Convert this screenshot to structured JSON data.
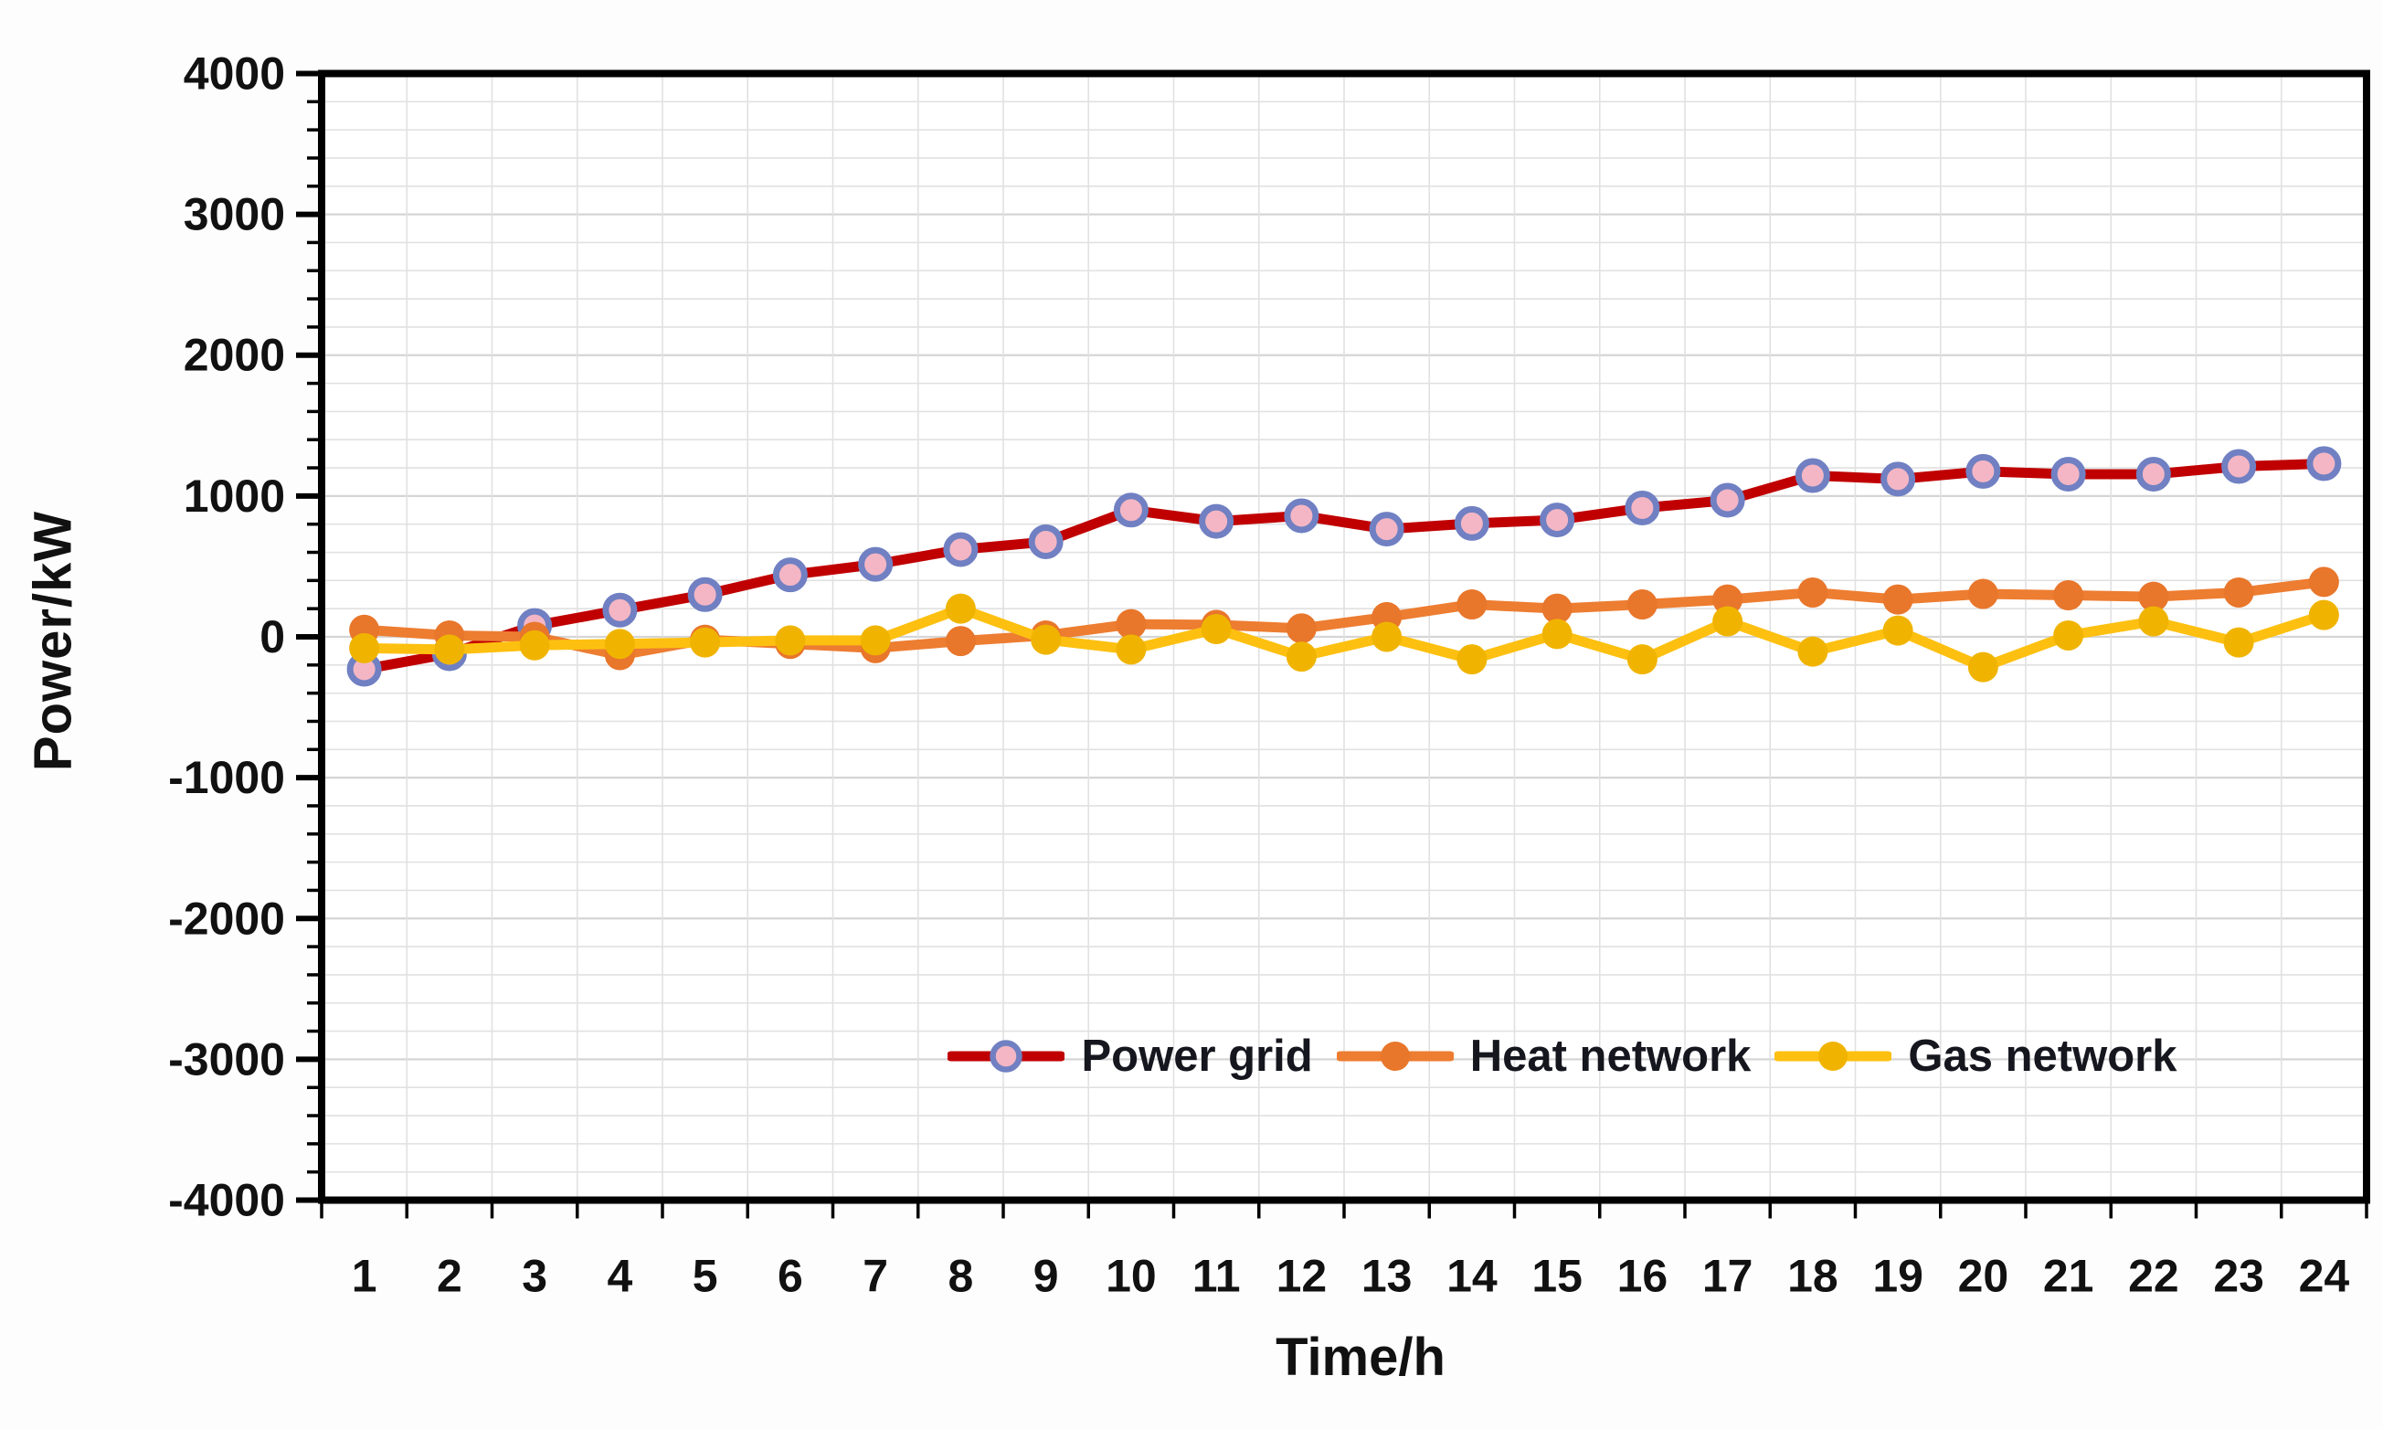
{
  "chart_data": {
    "type": "line",
    "title": "",
    "xlabel": "Time/h",
    "ylabel": "Power/kW",
    "x": [
      1,
      2,
      3,
      4,
      5,
      6,
      7,
      8,
      9,
      10,
      11,
      12,
      13,
      14,
      15,
      16,
      17,
      18,
      19,
      20,
      21,
      22,
      23,
      24
    ],
    "x_tick_labels": [
      "1",
      "2",
      "3",
      "4",
      "5",
      "6",
      "7",
      "8",
      "9",
      "10",
      "11",
      "12",
      "13",
      "14",
      "15",
      "16",
      "17",
      "18",
      "19",
      "20",
      "21",
      "22",
      "23",
      "24"
    ],
    "y_tick_labels": [
      "4000",
      "3000",
      "2000",
      "1000",
      "0",
      "-1000",
      "-2000",
      "-3000",
      "-4000"
    ],
    "ylim": [
      -4000,
      4000
    ],
    "ytick_major": 1000,
    "ytick_minor": 200,
    "grid": "both",
    "legend_position": "bottom-center-inside",
    "series": [
      {
        "name": "Power grid",
        "line_color": "#C00000",
        "marker": "circle-ringed",
        "marker_fill": "#F4B6C4",
        "marker_ring": "#7080C2",
        "values": [
          -230,
          -120,
          80,
          190,
          300,
          440,
          515,
          620,
          675,
          900,
          820,
          860,
          765,
          805,
          830,
          915,
          970,
          1145,
          1120,
          1175,
          1155,
          1155,
          1210,
          1230
        ]
      },
      {
        "name": "Heat network",
        "line_color": "#ED7D31",
        "marker": "circle",
        "marker_fill": "#E8762B",
        "values": [
          50,
          10,
          0,
          -130,
          -20,
          -50,
          -80,
          -30,
          10,
          90,
          85,
          60,
          140,
          230,
          200,
          230,
          265,
          315,
          265,
          305,
          295,
          285,
          315,
          390
        ]
      },
      {
        "name": "Gas network",
        "line_color": "#FDC010",
        "marker": "circle",
        "marker_fill": "#F0B400",
        "values": [
          -80,
          -90,
          -60,
          -50,
          -40,
          -25,
          -25,
          200,
          -20,
          -90,
          55,
          -140,
          0,
          -160,
          20,
          -160,
          110,
          -105,
          45,
          -215,
          10,
          110,
          -40,
          155
        ]
      }
    ],
    "colors": {
      "background": "#fdfdfd",
      "plot_background": "#ffffff",
      "grid_minor": "#E1E1E1",
      "grid_major": "#D5D5D5",
      "axis": "#000000",
      "tick_text": "#111111"
    }
  }
}
